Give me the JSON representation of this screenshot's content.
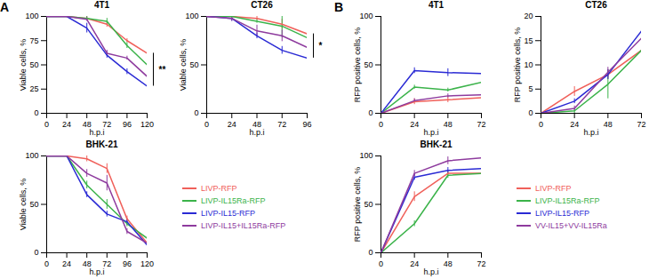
{
  "chart_data": [
    {
      "type": "line",
      "panel": "A",
      "title": "4T1",
      "xlabel": "h.p.i",
      "ylabel": "Viable cells, %",
      "x": [
        0,
        24,
        48,
        72,
        96,
        120
      ],
      "xlim": [
        0,
        120
      ],
      "xticks": [
        0,
        24,
        48,
        72,
        96,
        120
      ],
      "ylim": [
        0,
        100
      ],
      "yticks": [
        0,
        25,
        50,
        75,
        100
      ],
      "series": [
        {
          "name": "LIVP-RFP",
          "color": "#f0605a",
          "values": [
            100,
            100,
            98,
            92,
            75,
            62
          ],
          "errors": [
            0,
            0,
            2,
            3,
            2,
            4
          ]
        },
        {
          "name": "LIVP-IL15Ra-RFP",
          "color": "#3bb34a",
          "values": [
            100,
            100,
            98,
            95,
            70,
            50
          ],
          "errors": [
            0,
            0,
            2,
            3,
            3,
            4
          ]
        },
        {
          "name": "LIVP-IL15-RFP",
          "color": "#2a2ad4",
          "values": [
            100,
            100,
            88,
            60,
            43,
            28
          ],
          "errors": [
            0,
            0,
            5,
            3,
            3,
            3
          ]
        },
        {
          "name": "LIVP-IL15+IL15Ra-RFP",
          "color": "#8e3b9e",
          "values": [
            100,
            100,
            97,
            62,
            57,
            38
          ],
          "errors": [
            0,
            0,
            2,
            3,
            2,
            4
          ]
        }
      ],
      "annotations": [
        {
          "text": "**",
          "x": 120,
          "between": [
            "LIVP-RFP",
            "LIVP-IL15-RFP"
          ]
        }
      ]
    },
    {
      "type": "line",
      "title": "CT26",
      "xlabel": "h.p.i",
      "ylabel": "Viable cells, %",
      "x": [
        0,
        24,
        48,
        72,
        96
      ],
      "xlim": [
        0,
        96
      ],
      "xticks": [
        0,
        24,
        48,
        72,
        96
      ],
      "ylim": [
        0,
        100
      ],
      "yticks": [
        0,
        50,
        100
      ],
      "series": [
        {
          "name": "LIVP-RFP",
          "color": "#f0605a",
          "values": [
            100,
            100,
            98,
            92,
            82
          ],
          "errors": [
            0,
            0,
            2,
            5,
            5
          ]
        },
        {
          "name": "LIVP-IL15Ra-RFP",
          "color": "#3bb34a",
          "values": [
            100,
            100,
            95,
            90,
            78
          ],
          "errors": [
            0,
            0,
            2,
            12,
            12
          ]
        },
        {
          "name": "LIVP-IL15-RFP",
          "color": "#2a2ad4",
          "values": [
            100,
            98,
            80,
            65,
            57
          ],
          "errors": [
            0,
            3,
            3,
            4,
            3
          ]
        },
        {
          "name": "LIVP-IL15+IL15Ra-RFP",
          "color": "#8e3b9e",
          "values": [
            100,
            98,
            85,
            80,
            68
          ],
          "errors": [
            0,
            3,
            6,
            6,
            3
          ]
        }
      ],
      "annotations": [
        {
          "text": "*",
          "x": 96,
          "between": [
            "LIVP-RFP",
            "LIVP-IL15-RFP"
          ]
        }
      ]
    },
    {
      "type": "line",
      "title": "BHK-21",
      "xlabel": "h.p.i",
      "ylabel": "Viable cells, %",
      "x": [
        0,
        24,
        48,
        72,
        96,
        120
      ],
      "xlim": [
        0,
        120
      ],
      "xticks": [
        0,
        24,
        48,
        72,
        96,
        120
      ],
      "ylim": [
        0,
        100
      ],
      "yticks": [
        0,
        50,
        100
      ],
      "series": [
        {
          "name": "LIVP-RFP",
          "color": "#f0605a",
          "values": [
            100,
            100,
            97,
            87,
            35,
            10
          ],
          "errors": [
            0,
            0,
            3,
            5,
            3,
            3
          ]
        },
        {
          "name": "LIVP-IL15Ra-RFP",
          "color": "#3bb34a",
          "values": [
            100,
            100,
            70,
            50,
            30,
            15
          ],
          "errors": [
            0,
            0,
            4,
            5,
            3,
            4
          ]
        },
        {
          "name": "LIVP-IL15-RFP",
          "color": "#2a2ad4",
          "values": [
            100,
            100,
            60,
            40,
            32,
            8
          ],
          "errors": [
            0,
            0,
            3,
            3,
            3,
            3
          ]
        },
        {
          "name": "LIVP-IL15+IL15Ra-RFP",
          "color": "#8e3b9e",
          "values": [
            100,
            100,
            82,
            72,
            22,
            10
          ],
          "errors": [
            0,
            0,
            4,
            8,
            3,
            3
          ]
        }
      ]
    },
    {
      "type": "line",
      "panel": "B",
      "title": "4T1",
      "xlabel": "h.p.i",
      "ylabel": "RFP positive cells, %",
      "x": [
        0,
        24,
        48,
        72
      ],
      "xlim": [
        0,
        72
      ],
      "xticks": [
        0,
        24,
        48,
        72
      ],
      "ylim": [
        0,
        100
      ],
      "yticks": [
        0,
        50,
        100
      ],
      "series": [
        {
          "name": "LIVP-RFP",
          "color": "#f0605a",
          "values": [
            0,
            12,
            14,
            16
          ],
          "errors": [
            0,
            3,
            3,
            4
          ]
        },
        {
          "name": "LIVP-IL15Ra-RFP",
          "color": "#3bb34a",
          "values": [
            0,
            27,
            24,
            32
          ],
          "errors": [
            0,
            2,
            2,
            3
          ]
        },
        {
          "name": "LIVP-IL15-RFP",
          "color": "#2a2ad4",
          "values": [
            0,
            44,
            42,
            41
          ],
          "errors": [
            0,
            3,
            4,
            3
          ]
        },
        {
          "name": "VV-IL15+VV-IL15Ra",
          "color": "#8e3b9e",
          "values": [
            0,
            13,
            18,
            19
          ],
          "errors": [
            0,
            2,
            2,
            2
          ]
        }
      ]
    },
    {
      "type": "line",
      "title": "CT26",
      "xlabel": "h.p.i",
      "ylabel": "RFP positive cells, %",
      "x": [
        0,
        24,
        48,
        72
      ],
      "xlim": [
        0,
        72
      ],
      "xticks": [
        0,
        24,
        48,
        72
      ],
      "ylim": [
        0,
        20
      ],
      "yticks": [
        0,
        5,
        10,
        15,
        20
      ],
      "series": [
        {
          "name": "LIVP-RFP",
          "color": "#f0605a",
          "values": [
            0,
            4.5,
            8,
            13
          ],
          "errors": [
            0,
            1,
            1,
            2
          ]
        },
        {
          "name": "LIVP-IL15Ra-RFP",
          "color": "#3bb34a",
          "values": [
            0,
            0.5,
            6,
            13
          ],
          "errors": [
            0,
            0.5,
            3,
            1
          ]
        },
        {
          "name": "LIVP-IL15-RFP",
          "color": "#2a2ad4",
          "values": [
            0,
            2.5,
            8,
            17
          ],
          "errors": [
            0,
            0.5,
            1,
            1.5
          ]
        },
        {
          "name": "VV-IL15+VV-IL15Ra",
          "color": "#8e3b9e",
          "values": [
            0,
            1,
            8.5,
            15.5
          ],
          "errors": [
            0,
            0.5,
            1,
            1.5
          ]
        }
      ]
    },
    {
      "type": "line",
      "title": "BHK-21",
      "xlabel": "h.p.i",
      "ylabel": "RFP positive cells, %",
      "x": [
        0,
        24,
        48,
        72
      ],
      "xlim": [
        0,
        72
      ],
      "xticks": [
        0,
        24,
        48,
        72
      ],
      "ylim": [
        0,
        100
      ],
      "yticks": [
        0,
        50,
        100
      ],
      "series": [
        {
          "name": "LIVP-RFP",
          "color": "#f0605a",
          "values": [
            0,
            58,
            82,
            82
          ],
          "errors": [
            0,
            5,
            3,
            3
          ]
        },
        {
          "name": "LIVP-IL15Ra-RFP",
          "color": "#3bb34a",
          "values": [
            0,
            30,
            80,
            82
          ],
          "errors": [
            0,
            3,
            3,
            3
          ]
        },
        {
          "name": "LIVP-IL15-RFP",
          "color": "#2a2ad4",
          "values": [
            0,
            78,
            85,
            87
          ],
          "errors": [
            0,
            3,
            3,
            3
          ]
        },
        {
          "name": "VV-IL15+VV-IL15Ra",
          "color": "#8e3b9e",
          "values": [
            0,
            82,
            95,
            98
          ],
          "errors": [
            0,
            3,
            4,
            3
          ]
        }
      ]
    }
  ]
}
